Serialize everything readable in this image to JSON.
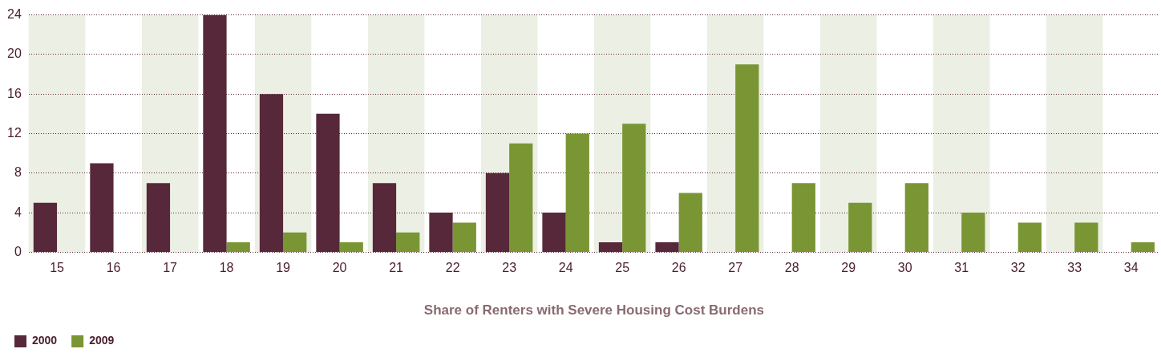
{
  "chart_data": {
    "type": "bar",
    "xlabel": "Share of Renters with Severe Housing Cost Burdens",
    "categories": [
      "15",
      "16",
      "17",
      "18",
      "19",
      "20",
      "21",
      "22",
      "23",
      "24",
      "25",
      "26",
      "27",
      "28",
      "29",
      "30",
      "31",
      "32",
      "33",
      "34"
    ],
    "series": [
      {
        "name": "2000",
        "color": "#57283a",
        "values": [
          5,
          9,
          7,
          24,
          16,
          14,
          7,
          4,
          8,
          4,
          1,
          1,
          0,
          0,
          0,
          0,
          0,
          0,
          0,
          0
        ]
      },
      {
        "name": "2009",
        "color": "#7a9634",
        "values": [
          0,
          0,
          0,
          1,
          2,
          1,
          2,
          3,
          11,
          12,
          13,
          6,
          19,
          7,
          5,
          7,
          4,
          3,
          3,
          1
        ]
      }
    ],
    "ylim": [
      0,
      24
    ],
    "yticks": [
      0,
      4,
      8,
      12,
      16,
      20,
      24
    ],
    "grid": "y",
    "legend": "bottom left",
    "bands": [
      {
        "axis": "x",
        "from": "15",
        "to": "15",
        "color": "#ecefe3"
      },
      {
        "axis": "x",
        "from": "17",
        "to": "17",
        "color": "#ecefe3"
      },
      {
        "axis": "x",
        "from": "19",
        "to": "19",
        "color": "#ecefe3"
      },
      {
        "axis": "x",
        "from": "21",
        "to": "21",
        "color": "#ecefe3"
      },
      {
        "axis": "x",
        "from": "23",
        "to": "23",
        "color": "#ecefe3"
      },
      {
        "axis": "x",
        "from": "25",
        "to": "25",
        "color": "#ecefe3"
      },
      {
        "axis": "x",
        "from": "27",
        "to": "27",
        "color": "#ecefe3"
      },
      {
        "axis": "x",
        "from": "29",
        "to": "29",
        "color": "#ecefe3"
      },
      {
        "axis": "x",
        "from": "31",
        "to": "31",
        "color": "#ecefe3"
      },
      {
        "axis": "x",
        "from": "33",
        "to": "33",
        "color": "#ecefe3"
      }
    ]
  }
}
